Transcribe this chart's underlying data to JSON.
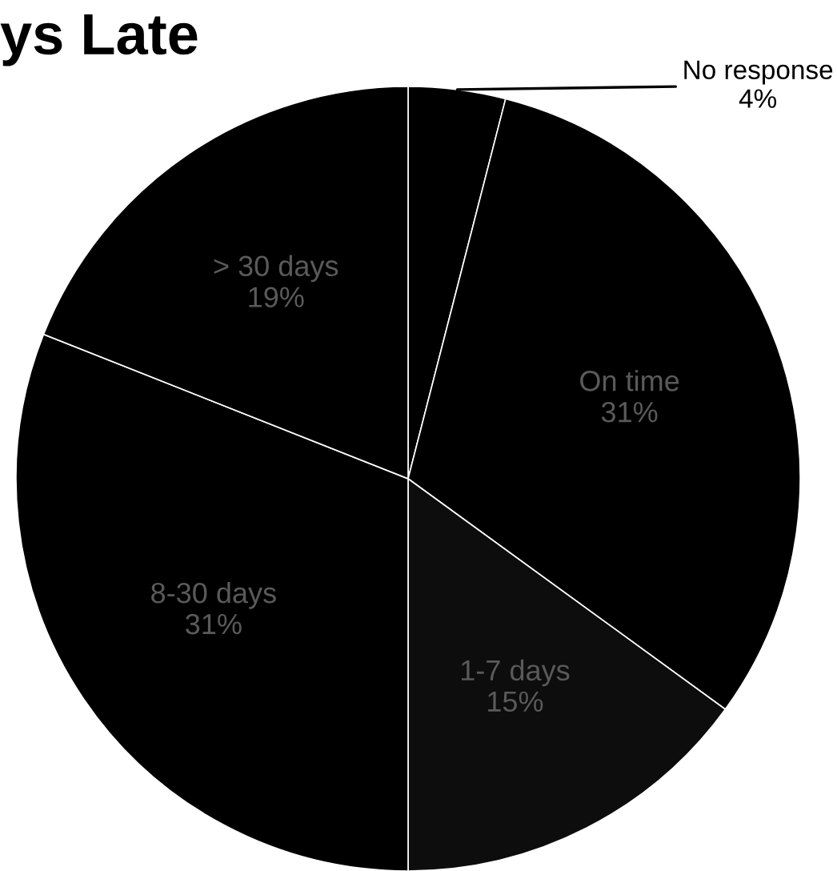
{
  "chart_data": {
    "type": "pie",
    "title": "ys Late",
    "categories": [
      "No response",
      "On time",
      "1-7 days",
      "8-30 days",
      "> 30 days"
    ],
    "values": [
      4,
      31,
      15,
      31,
      19
    ],
    "value_labels": [
      "4%",
      "31%",
      "15%",
      "31%",
      "19%"
    ],
    "colors": [
      "#000000",
      "#000000",
      "#0d0d0d",
      "#000000",
      "#000000"
    ],
    "legend": false
  }
}
